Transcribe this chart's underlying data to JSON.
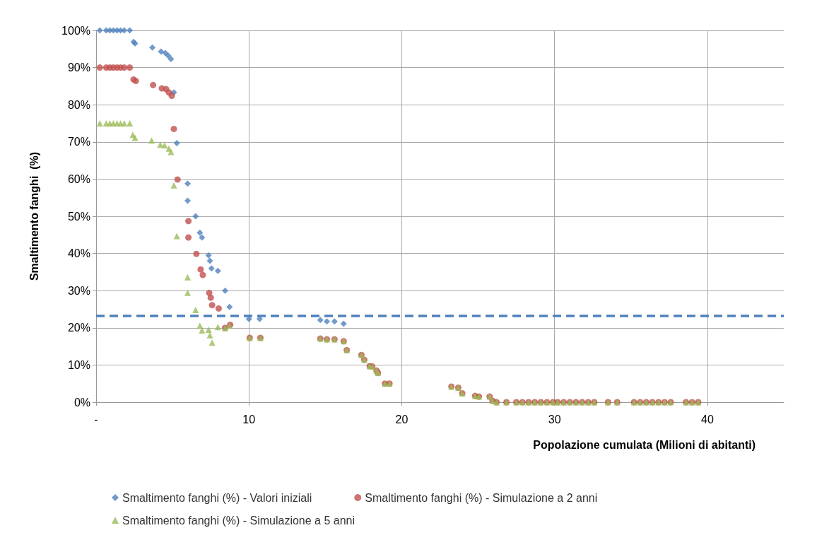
{
  "chart_data": {
    "type": "scatter",
    "xlabel": "Popolazione cumulata (Milioni di abitanti)",
    "ylabel": "Smaltimento fanghi  (%)",
    "xlim": [
      0,
      45
    ],
    "xticks": [
      {
        "value": 0,
        "label": "-"
      },
      10,
      20,
      30,
      40
    ],
    "ylim": [
      0,
      100
    ],
    "yticks": [
      {
        "value": 0,
        "label": "0%"
      },
      {
        "value": 10,
        "label": "10%"
      },
      {
        "value": 20,
        "label": "20%"
      },
      {
        "value": 30,
        "label": "30%"
      },
      {
        "value": 40,
        "label": "40%"
      },
      {
        "value": 50,
        "label": "50%"
      },
      {
        "value": 60,
        "label": "60%"
      },
      {
        "value": 70,
        "label": "70%"
      },
      {
        "value": 80,
        "label": "80%"
      },
      {
        "value": 90,
        "label": "90%"
      },
      {
        "value": 100,
        "label": "100%"
      }
    ],
    "grid": true,
    "legend": "bottom",
    "ref_lines": [
      {
        "axis": "y",
        "value": 23.3,
        "label": null,
        "color": "#4f81bd",
        "line_style": "dashed"
      }
    ],
    "series": [
      {
        "name": "Smaltimento fanghi (%) - Valori iniziali",
        "color": "#4f81bd",
        "marker": "diamond",
        "x": [
          0.24,
          0.66,
          0.9,
          1.13,
          1.37,
          1.6,
          1.84,
          2.2,
          2.45,
          2.55,
          3.68,
          4.25,
          4.53,
          4.72,
          4.9,
          5.09,
          5.28,
          5.99,
          5.99,
          6.51,
          6.79,
          6.93,
          7.36,
          7.45,
          7.55,
          7.97,
          8.44,
          8.73,
          10.0,
          10.7,
          14.67,
          15.1,
          15.6,
          16.2
        ],
        "values": [
          100,
          100,
          100,
          100,
          100,
          100,
          100,
          100,
          96.9,
          96.5,
          95.4,
          94.3,
          93.9,
          93.2,
          92.3,
          83.3,
          69.7,
          58.8,
          54.2,
          50,
          45.6,
          44.3,
          39.5,
          38,
          36,
          35.3,
          30,
          25.6,
          22.4,
          22.4,
          22.1,
          21.7,
          21.7,
          21.1
        ]
      },
      {
        "name": "Smaltimento fanghi (%) - Simulazione a 2 anni",
        "color": "#c0504d",
        "marker": "circle",
        "x": [
          0.24,
          0.66,
          0.9,
          1.13,
          1.37,
          1.6,
          1.84,
          2.2,
          2.45,
          2.6,
          3.73,
          4.3,
          4.58,
          4.76,
          4.95,
          5.09,
          5.33,
          6.04,
          6.04,
          6.56,
          6.84,
          6.98,
          7.4,
          7.5,
          7.59,
          8.02,
          8.44,
          8.77,
          10.05,
          10.75,
          14.67,
          15.1,
          15.6,
          16.2,
          16.4,
          17.36,
          17.55,
          17.9,
          18.07,
          18.35,
          18.44,
          18.9,
          19.2,
          23.25,
          23.7,
          23.96,
          24.8,
          25.05,
          25.75,
          25.94,
          26.2,
          26.85,
          27.5,
          27.9,
          28.3,
          28.7,
          29.1,
          29.5,
          29.9,
          30.2,
          30.6,
          31.0,
          31.4,
          31.8,
          32.2,
          32.6,
          33.5,
          34.1,
          35.2,
          35.6,
          36.0,
          36.4,
          36.8,
          37.2,
          37.6,
          38.6,
          39.0,
          39.4
        ],
        "values": [
          90,
          90,
          90,
          90,
          90,
          90,
          90,
          90,
          86.8,
          86.4,
          85.3,
          84.4,
          84.2,
          83.3,
          82.4,
          73.5,
          59.9,
          48.7,
          44.3,
          39.9,
          35.7,
          34.2,
          29.4,
          28.1,
          26.1,
          25.2,
          20,
          20.8,
          17.3,
          17.3,
          17.1,
          16.9,
          16.9,
          16.4,
          14,
          12.7,
          11.4,
          9.7,
          9.6,
          8.5,
          7.9,
          5,
          5,
          4.2,
          3.9,
          2.4,
          1.7,
          1.5,
          1.5,
          0.4,
          0,
          0,
          0,
          0,
          0,
          0,
          0,
          0,
          0,
          0,
          0,
          0,
          0,
          0,
          0,
          0,
          0,
          0,
          0,
          0,
          0,
          0,
          0,
          0,
          0,
          0,
          0,
          0
        ]
      },
      {
        "name": "Smaltimento fanghi (%) - Simulazione a 5 anni",
        "color": "#9bbb59",
        "marker": "triangle",
        "x": [
          0.24,
          0.66,
          0.9,
          1.13,
          1.37,
          1.6,
          1.84,
          2.2,
          2.4,
          2.55,
          3.63,
          4.2,
          4.48,
          4.76,
          4.9,
          5.09,
          5.28,
          5.99,
          5.99,
          6.51,
          6.79,
          6.93,
          7.36,
          7.45,
          7.59,
          7.97,
          8.44,
          8.73,
          10.05,
          10.75,
          14.67,
          15.1,
          15.6,
          16.2,
          16.4,
          17.36,
          17.55,
          17.9,
          18.07,
          18.35,
          18.44,
          18.9,
          19.2,
          23.25,
          23.7,
          23.96,
          24.8,
          25.05,
          25.75,
          25.94,
          26.2,
          26.85,
          27.5,
          27.9,
          28.3,
          28.7,
          29.1,
          29.5,
          29.9,
          30.2,
          30.6,
          31.0,
          31.4,
          31.8,
          32.2,
          32.6,
          33.5,
          34.1,
          35.2,
          35.6,
          36.0,
          36.4,
          36.8,
          37.2,
          37.6,
          38.6,
          39.0,
          39.4
        ],
        "values": [
          75,
          75,
          75,
          75,
          75,
          75,
          75,
          75,
          71.9,
          71.1,
          70.4,
          69.3,
          69.1,
          68.2,
          67.3,
          58.3,
          44.7,
          33.6,
          29.4,
          24.8,
          20.6,
          19.3,
          19.5,
          18,
          16,
          20.2,
          19.9,
          20.6,
          17.3,
          17.3,
          17.1,
          16.9,
          16.9,
          16.4,
          14,
          12.7,
          11.4,
          9.7,
          9.6,
          8.5,
          7.9,
          5,
          5,
          4.2,
          3.9,
          2.4,
          1.7,
          1.5,
          1.5,
          0.4,
          0,
          0,
          0,
          0,
          0,
          0,
          0,
          0,
          0,
          0,
          0,
          0,
          0,
          0,
          0,
          0,
          0,
          0,
          0,
          0,
          0,
          0,
          0,
          0,
          0,
          0,
          0,
          0
        ]
      }
    ]
  }
}
